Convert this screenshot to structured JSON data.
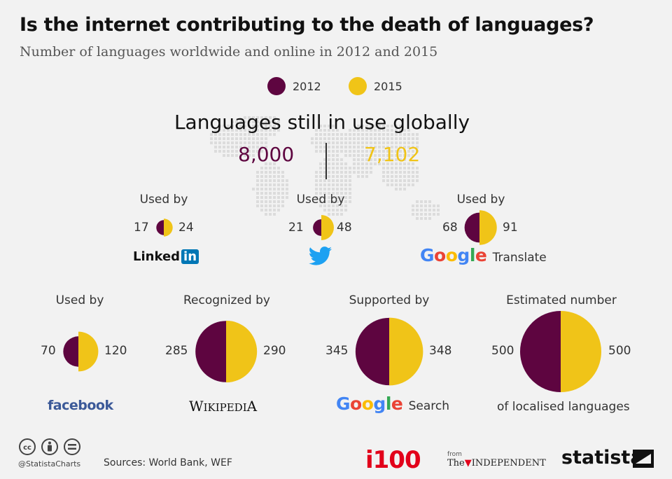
{
  "title": "Is the internet contributing to the death of languages?",
  "subtitle": "Number of languages worldwide and online in 2012 and 2015",
  "colors": {
    "y2012": "#5e0540",
    "y2015": "#f0c418"
  },
  "chart_data": {
    "type": "pie",
    "legend": [
      "2012",
      "2015"
    ],
    "globe": {
      "title": "Languages still in use globally",
      "value_2012": "8,000",
      "value_2015": "7,102"
    },
    "items": [
      {
        "label": "Used by",
        "v2012": 17,
        "v2015": 24,
        "brand": "LinkedIn"
      },
      {
        "label": "Used by",
        "v2012": 21,
        "v2015": 48,
        "brand": "twitter"
      },
      {
        "label": "Used by",
        "v2012": 68,
        "v2015": 91,
        "brand": "Google",
        "brand_suffix": "Translate"
      },
      {
        "label": "Used by",
        "v2012": 70,
        "v2015": 120,
        "brand": "facebook"
      },
      {
        "label": "Recognized by",
        "v2012": 285,
        "v2015": 290,
        "brand": "Wikipedia"
      },
      {
        "label": "Supported by",
        "v2012": 345,
        "v2015": 348,
        "brand": "Google",
        "brand_suffix": "Search"
      },
      {
        "label": "Estimated number",
        "v2012": 500,
        "v2015": 500,
        "brand": "of localised languages"
      }
    ]
  },
  "brands": {
    "linkedin_text": "Linked",
    "linkedin_in": "in",
    "google": "Google",
    "translate": "Translate",
    "search": "Search",
    "facebook": "facebook",
    "wikipedia_w": "W",
    "wikipedia_rest": "IKIPEDI",
    "wikipedia_a": "A",
    "localised": "of localised languages"
  },
  "footer": {
    "handle": "@StatistaCharts",
    "sources": "Sources: World Bank, WEF",
    "i100": "i100",
    "from": "from",
    "independent_the": "The",
    "independent": "INDEPENDENT",
    "statista": "statista"
  }
}
